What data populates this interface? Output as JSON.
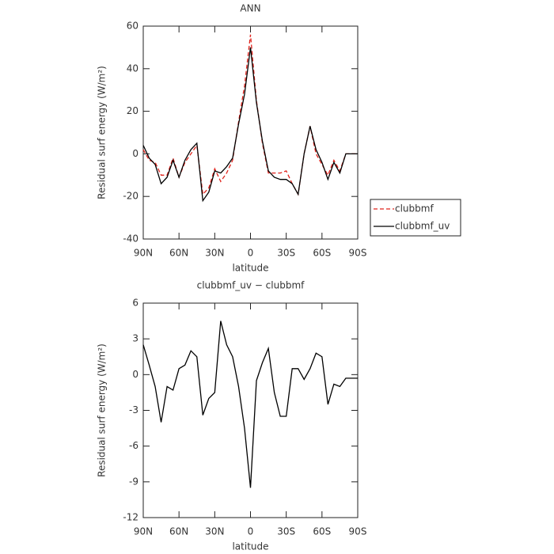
{
  "chart_data": [
    {
      "type": "line",
      "title": "ANN",
      "xlabel": "latitude",
      "ylabel": "Residual surf energy (W/m²)",
      "x": [
        90,
        85,
        80,
        75,
        70,
        65,
        60,
        55,
        50,
        45,
        40,
        35,
        30,
        25,
        20,
        15,
        10,
        5,
        0,
        -5,
        -10,
        -15,
        -20,
        -25,
        -30,
        -35,
        -40,
        -45,
        -50,
        -55,
        -60,
        -65,
        -70,
        -75,
        -80,
        -85,
        -90
      ],
      "xlim": [
        90,
        -90
      ],
      "xticks": [
        {
          "value": 90,
          "label": "90N"
        },
        {
          "value": 60,
          "label": "60N"
        },
        {
          "value": 30,
          "label": "30N"
        },
        0,
        {
          "value": -30,
          "label": "30S"
        },
        {
          "value": -60,
          "label": "60S"
        },
        {
          "value": -90,
          "label": "90S"
        }
      ],
      "ylim": [
        -40,
        60
      ],
      "yticks": [
        -40,
        -20,
        0,
        20,
        40,
        60
      ],
      "series": [
        {
          "name": "clubbmf",
          "color": "#e0231c",
          "dash": true,
          "values": [
            2,
            -3,
            -4,
            -10,
            -10,
            -2,
            -11,
            -4,
            0,
            4,
            -19,
            -16,
            -7,
            -13,
            -9,
            -3,
            15,
            32,
            56,
            25,
            5,
            -9,
            -9,
            -9,
            -8,
            -14,
            -19,
            0,
            13,
            0,
            -5,
            -10,
            -3,
            -8,
            0,
            0,
            0
          ]
        },
        {
          "name": "clubbmf_uv",
          "color": "#000000",
          "dash": false,
          "values": [
            4,
            -2,
            -5,
            -14,
            -11,
            -3,
            -11,
            -3,
            2,
            5,
            -22,
            -18,
            -8,
            -9,
            -6,
            -2,
            14,
            28,
            50,
            24,
            6,
            -8,
            -11,
            -12,
            -12,
            -14,
            -19,
            0,
            13,
            2,
            -4,
            -12,
            -4,
            -9,
            0,
            0,
            0
          ]
        }
      ]
    },
    {
      "type": "line",
      "title": "clubbmf_uv − clubbmf",
      "xlabel": "latitude",
      "ylabel": "Residual surf energy (W/m²)",
      "x": [
        90,
        85,
        80,
        75,
        70,
        65,
        60,
        55,
        50,
        45,
        40,
        35,
        30,
        25,
        20,
        15,
        10,
        5,
        0,
        -5,
        -10,
        -15,
        -20,
        -25,
        -30,
        -35,
        -40,
        -45,
        -50,
        -55,
        -60,
        -65,
        -70,
        -75,
        -80,
        -85,
        -90
      ],
      "xlim": [
        90,
        -90
      ],
      "xticks": [
        {
          "value": 90,
          "label": "90N"
        },
        {
          "value": 60,
          "label": "60N"
        },
        {
          "value": 30,
          "label": "30N"
        },
        0,
        {
          "value": -30,
          "label": "30S"
        },
        {
          "value": -60,
          "label": "60S"
        },
        {
          "value": -90,
          "label": "90S"
        }
      ],
      "ylim": [
        -12,
        6
      ],
      "yticks": [
        -12,
        -9,
        -6,
        -3,
        0,
        3,
        6
      ],
      "series": [
        {
          "color": "#000000",
          "dash": false,
          "values": [
            2.5,
            0.8,
            -1,
            -4,
            -1,
            -1.3,
            0.5,
            0.8,
            2,
            1.5,
            -3.4,
            -2,
            -1.5,
            4.5,
            2.5,
            1.5,
            -1,
            -4.5,
            -9.5,
            -0.5,
            1,
            2.2,
            -1.5,
            -3.5,
            -3.5,
            0.5,
            0.5,
            -0.4,
            0.5,
            1.8,
            1.5,
            -2.5,
            -0.8,
            -1,
            -0.3,
            -0.3,
            -0.3
          ]
        }
      ]
    }
  ]
}
